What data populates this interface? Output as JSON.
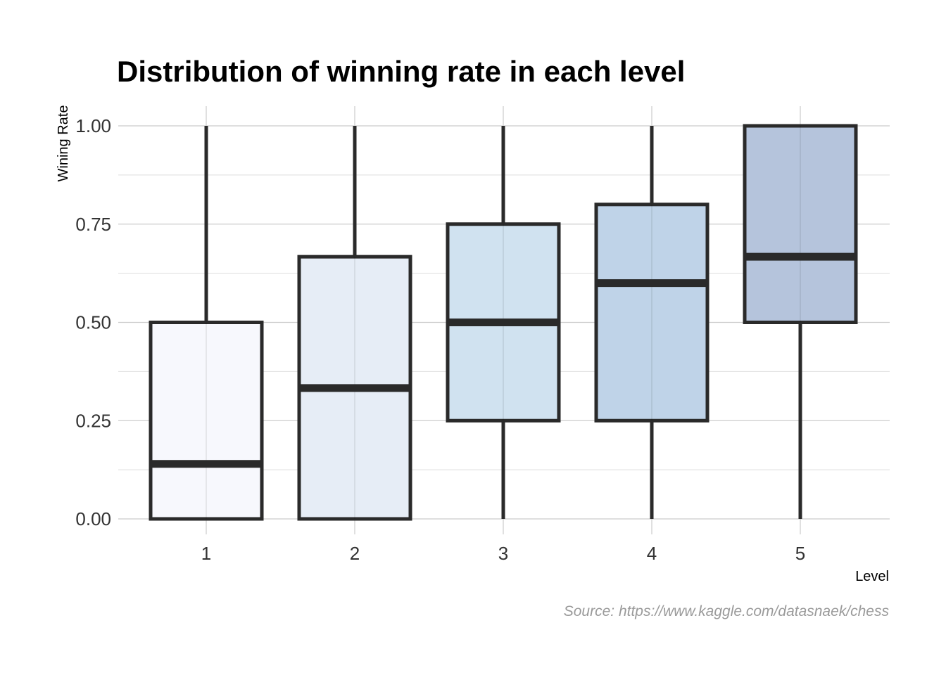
{
  "chart_data": {
    "type": "boxplot",
    "title": "Distribution of winning rate in each level",
    "xlabel": "Level",
    "ylabel": "Wining Rate",
    "caption": "Source: https://www.kaggle.com/datasnaek/chess",
    "ylim": [
      0,
      1
    ],
    "yticks": [
      0,
      0.25,
      0.5,
      0.75,
      1
    ],
    "ytick_labels": [
      "0.00",
      "0.25",
      "0.50",
      "0.75",
      "1.00"
    ],
    "grid": true,
    "categories": [
      "1",
      "2",
      "3",
      "4",
      "5"
    ],
    "boxes": [
      {
        "category": "1",
        "min": 0,
        "q1": 0,
        "median": 0.14,
        "q3": 0.5,
        "max": 1.0,
        "color": "#f7f8fd"
      },
      {
        "category": "2",
        "min": 0,
        "q1": 0,
        "median": 0.333,
        "q3": 0.667,
        "max": 1.0,
        "color": "#e6edf6"
      },
      {
        "category": "3",
        "min": 0,
        "q1": 0.25,
        "median": 0.5,
        "q3": 0.75,
        "max": 1.0,
        "color": "#d0e2f0"
      },
      {
        "category": "4",
        "min": 0,
        "q1": 0.25,
        "median": 0.6,
        "q3": 0.8,
        "max": 1.0,
        "color": "#bfd3e8"
      },
      {
        "category": "5",
        "min": 0,
        "q1": 0.5,
        "median": 0.667,
        "q3": 1.0,
        "max": 1.0,
        "color": "#b5c4dc"
      }
    ],
    "line_color": "#2a2a2a"
  }
}
